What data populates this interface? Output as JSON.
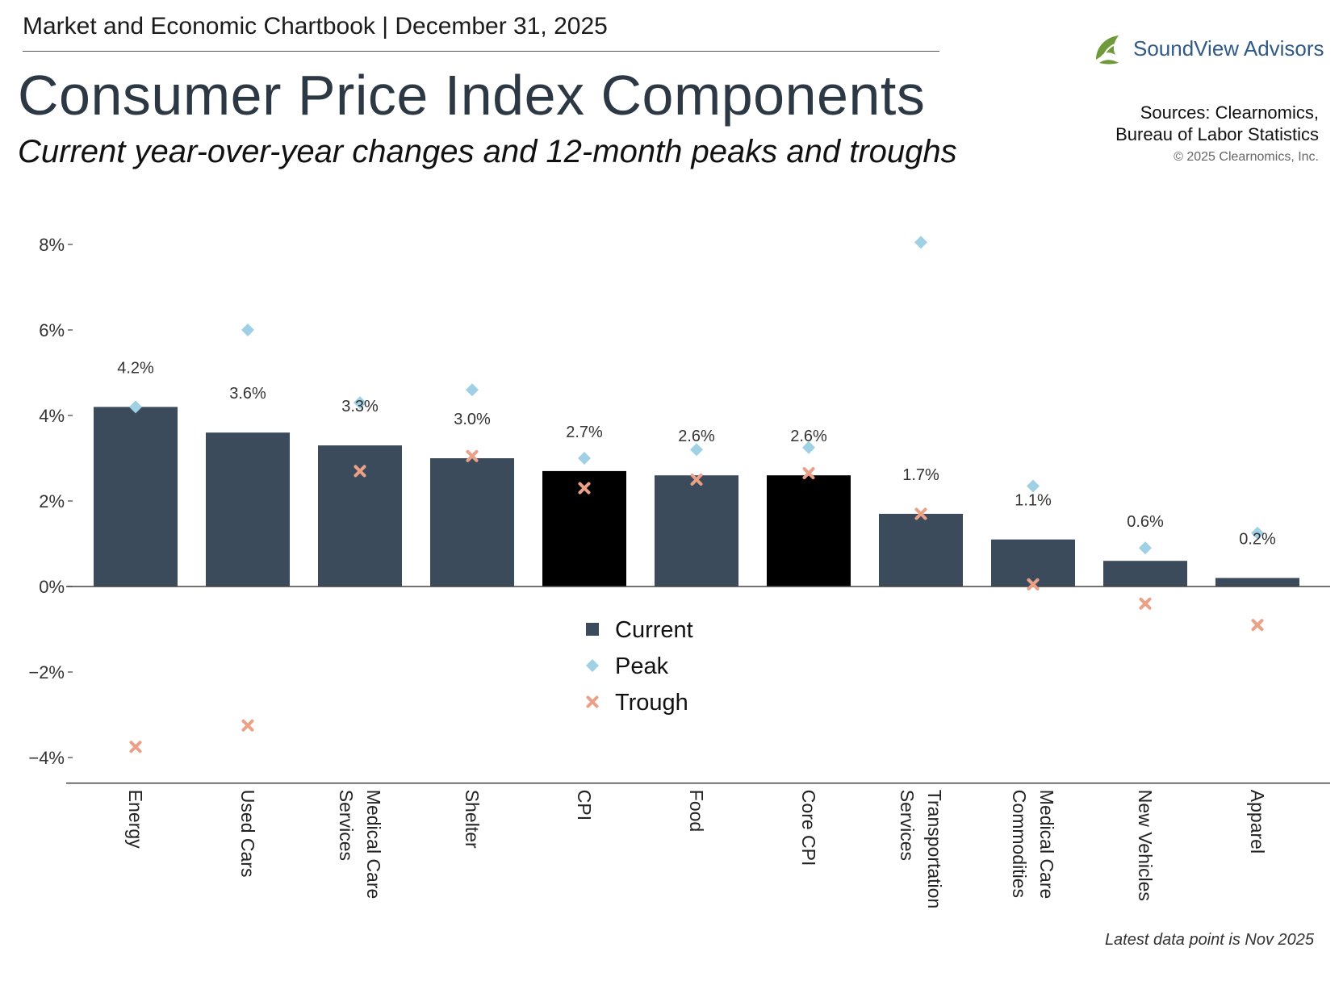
{
  "header": {
    "kicker": "Market and Economic Chartbook | December 31, 2025",
    "title": "Consumer Price Index Components",
    "subtitle": "Current year-over-year changes and 12-month peaks and troughs"
  },
  "brand": {
    "name": "SoundView Advisors",
    "logo_icon": "leaf-swirl-icon",
    "color": "#2f5a88",
    "logo_color": "#6f9a3a"
  },
  "sources": {
    "line1": "Sources: Clearnomics,",
    "line2": "Bureau of Labor Statistics",
    "copyright": "© 2025 Clearnomics, Inc."
  },
  "footnote": "Latest data point is Nov 2025",
  "colors": {
    "bar": "#3c4b5c",
    "highlight": "#000000",
    "peak": "#9fd0e4",
    "trough": "#eba187",
    "axis": "#444444"
  },
  "chart_data": {
    "type": "bar",
    "title": "Consumer Price Index Components",
    "ylim": [
      -4.6,
      8.4
    ],
    "yticks": [
      8,
      6,
      4,
      2,
      0,
      -2,
      -4
    ],
    "ytick_labels": [
      "8%",
      "6%",
      "4%",
      "2%",
      "0%",
      "−2%",
      "−4%"
    ],
    "categories": [
      [
        "Energy"
      ],
      [
        "Used Cars"
      ],
      [
        "Medical Care",
        "Services"
      ],
      [
        "Shelter"
      ],
      [
        "CPI"
      ],
      [
        "Food"
      ],
      [
        "Core CPI"
      ],
      [
        "Transportation",
        "Services"
      ],
      [
        "Medical Care",
        "Commodities"
      ],
      [
        "New Vehicles"
      ],
      [
        "Apparel"
      ]
    ],
    "highlighted": [
      false,
      false,
      false,
      false,
      true,
      false,
      true,
      false,
      false,
      false,
      false
    ],
    "series": [
      {
        "name": "Current",
        "type": "bar",
        "values": [
          4.2,
          3.6,
          3.3,
          3.0,
          2.7,
          2.6,
          2.6,
          1.7,
          1.1,
          0.6,
          0.2
        ],
        "labels": [
          "4.2%",
          "3.6%",
          "3.3%",
          "3.0%",
          "2.7%",
          "2.6%",
          "2.6%",
          "1.7%",
          "1.1%",
          "0.6%",
          "0.2%"
        ]
      },
      {
        "name": "Peak",
        "type": "scatter",
        "marker": "diamond",
        "values": [
          4.2,
          6.0,
          4.3,
          4.6,
          3.0,
          3.2,
          3.25,
          8.05,
          2.35,
          0.9,
          1.25
        ]
      },
      {
        "name": "Trough",
        "type": "scatter",
        "marker": "x",
        "values": [
          -3.75,
          -3.25,
          2.7,
          3.05,
          2.3,
          2.5,
          2.65,
          1.7,
          0.05,
          -0.4,
          -0.9
        ]
      }
    ],
    "legend": {
      "position": "center",
      "items": [
        "Current",
        "Peak",
        "Trough"
      ]
    }
  }
}
